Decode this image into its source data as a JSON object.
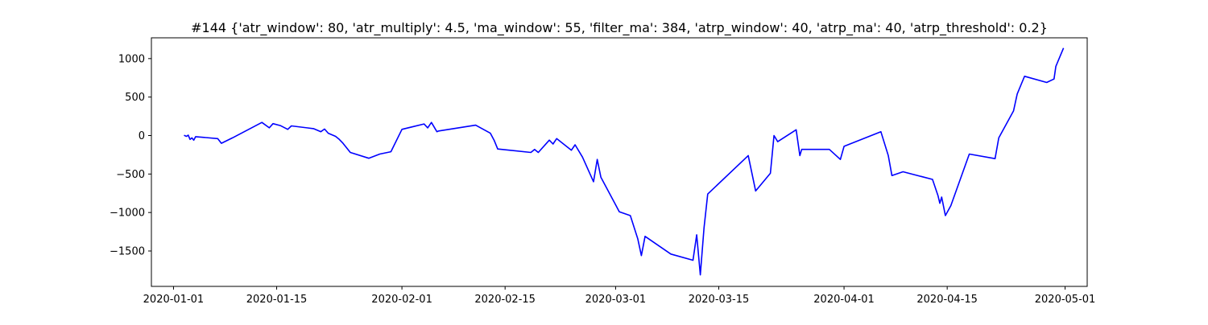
{
  "chart_data": {
    "type": "line",
    "title": "#144 {'atr_window': 80, 'atr_multiply': 4.5, 'ma_window': 55, 'filter_ma': 384, 'atrp_window': 40, 'atrp_ma': 40, 'atrp_threshold': 0.2}",
    "xlabel": "",
    "ylabel": "",
    "x_axis_type": "date",
    "xlim": [
      "2019-12-29",
      "2020-05-04"
    ],
    "ylim": [
      -1960,
      1270
    ],
    "grid": false,
    "legend": "none",
    "x_ticks": [
      "2020-01-01",
      "2020-01-15",
      "2020-02-01",
      "2020-02-15",
      "2020-03-01",
      "2020-03-15",
      "2020-04-01",
      "2020-04-15",
      "2020-05-01"
    ],
    "y_ticks": [
      -1500,
      -1000,
      -500,
      0,
      500,
      1000
    ],
    "series": [
      {
        "color": "#0000ff",
        "points": [
          [
            "2020-01-02T12:00",
            0
          ],
          [
            "2020-01-02T18:00",
            -10
          ],
          [
            "2020-01-03T00:00",
            5
          ],
          [
            "2020-01-03T06:00",
            -50
          ],
          [
            "2020-01-03T12:00",
            -30
          ],
          [
            "2020-01-03T18:00",
            -60
          ],
          [
            "2020-01-04T00:00",
            -15
          ],
          [
            "2020-01-07T00:00",
            -40
          ],
          [
            "2020-01-07T12:00",
            -100
          ],
          [
            "2020-01-09T00:00",
            -30
          ],
          [
            "2020-01-13T00:00",
            170
          ],
          [
            "2020-01-14T00:00",
            100
          ],
          [
            "2020-01-14T12:00",
            155
          ],
          [
            "2020-01-15T12:00",
            130
          ],
          [
            "2020-01-16T12:00",
            80
          ],
          [
            "2020-01-17T00:00",
            125
          ],
          [
            "2020-01-20T00:00",
            90
          ],
          [
            "2020-01-21T00:00",
            50
          ],
          [
            "2020-01-21T12:00",
            85
          ],
          [
            "2020-01-22T00:00",
            30
          ],
          [
            "2020-01-23T00:00",
            -10
          ],
          [
            "2020-01-23T12:00",
            -50
          ],
          [
            "2020-01-24T00:00",
            -100
          ],
          [
            "2020-01-25T00:00",
            -220
          ],
          [
            "2020-01-27T12:00",
            -295
          ],
          [
            "2020-01-29T00:00",
            -240
          ],
          [
            "2020-01-30T12:00",
            -210
          ],
          [
            "2020-02-01T00:00",
            80
          ],
          [
            "2020-02-04T00:00",
            150
          ],
          [
            "2020-02-04T12:00",
            100
          ],
          [
            "2020-02-05T00:00",
            170
          ],
          [
            "2020-02-05T18:00",
            50
          ],
          [
            "2020-02-06T00:00",
            60
          ],
          [
            "2020-02-11T00:00",
            135
          ],
          [
            "2020-02-13T00:00",
            30
          ],
          [
            "2020-02-13T12:00",
            -60
          ],
          [
            "2020-02-14T00:00",
            -175
          ],
          [
            "2020-02-18T12:00",
            -220
          ],
          [
            "2020-02-19T00:00",
            -180
          ],
          [
            "2020-02-19T12:00",
            -220
          ],
          [
            "2020-02-21T00:00",
            -60
          ],
          [
            "2020-02-21T12:00",
            -110
          ],
          [
            "2020-02-22T00:00",
            -40
          ],
          [
            "2020-02-24T00:00",
            -190
          ],
          [
            "2020-02-24T12:00",
            -120
          ],
          [
            "2020-02-25T12:00",
            -280
          ],
          [
            "2020-02-27T00:00",
            -600
          ],
          [
            "2020-02-27T12:00",
            -310
          ],
          [
            "2020-02-28T00:00",
            -540
          ],
          [
            "2020-03-01T12:00",
            -990
          ],
          [
            "2020-03-03T00:00",
            -1040
          ],
          [
            "2020-03-04T00:00",
            -1340
          ],
          [
            "2020-03-04T12:00",
            -1560
          ],
          [
            "2020-03-05T00:00",
            -1310
          ],
          [
            "2020-03-08T12:00",
            -1540
          ],
          [
            "2020-03-11T12:00",
            -1620
          ],
          [
            "2020-03-12T00:00",
            -1290
          ],
          [
            "2020-03-12T12:00",
            -1810
          ],
          [
            "2020-03-13T00:00",
            -1200
          ],
          [
            "2020-03-13T12:00",
            -760
          ],
          [
            "2020-03-19T00:00",
            -260
          ],
          [
            "2020-03-20T00:00",
            -720
          ],
          [
            "2020-03-22T00:00",
            -490
          ],
          [
            "2020-03-22T12:00",
            0
          ],
          [
            "2020-03-23T00:00",
            -80
          ],
          [
            "2020-03-25T12:00",
            75
          ],
          [
            "2020-03-26T00:00",
            -260
          ],
          [
            "2020-03-26T06:00",
            -180
          ],
          [
            "2020-03-30T00:00",
            -180
          ],
          [
            "2020-03-31T12:00",
            -310
          ],
          [
            "2020-04-01T00:00",
            -140
          ],
          [
            "2020-04-06T00:00",
            50
          ],
          [
            "2020-04-07T00:00",
            -260
          ],
          [
            "2020-04-07T12:00",
            -520
          ],
          [
            "2020-04-09T00:00",
            -470
          ],
          [
            "2020-04-13T00:00",
            -570
          ],
          [
            "2020-04-13T18:00",
            -780
          ],
          [
            "2020-04-14T00:00",
            -880
          ],
          [
            "2020-04-14T06:00",
            -800
          ],
          [
            "2020-04-14T18:00",
            -1040
          ],
          [
            "2020-04-15T12:00",
            -910
          ],
          [
            "2020-04-18T00:00",
            -240
          ],
          [
            "2020-04-21T12:00",
            -300
          ],
          [
            "2020-04-22T00:00",
            -30
          ],
          [
            "2020-04-24T00:00",
            320
          ],
          [
            "2020-04-24T12:00",
            540
          ],
          [
            "2020-04-25T12:00",
            770
          ],
          [
            "2020-04-28T12:00",
            690
          ],
          [
            "2020-04-29T12:00",
            735
          ],
          [
            "2020-04-29T18:00",
            900
          ],
          [
            "2020-04-30T18:00",
            1130
          ]
        ]
      }
    ]
  }
}
